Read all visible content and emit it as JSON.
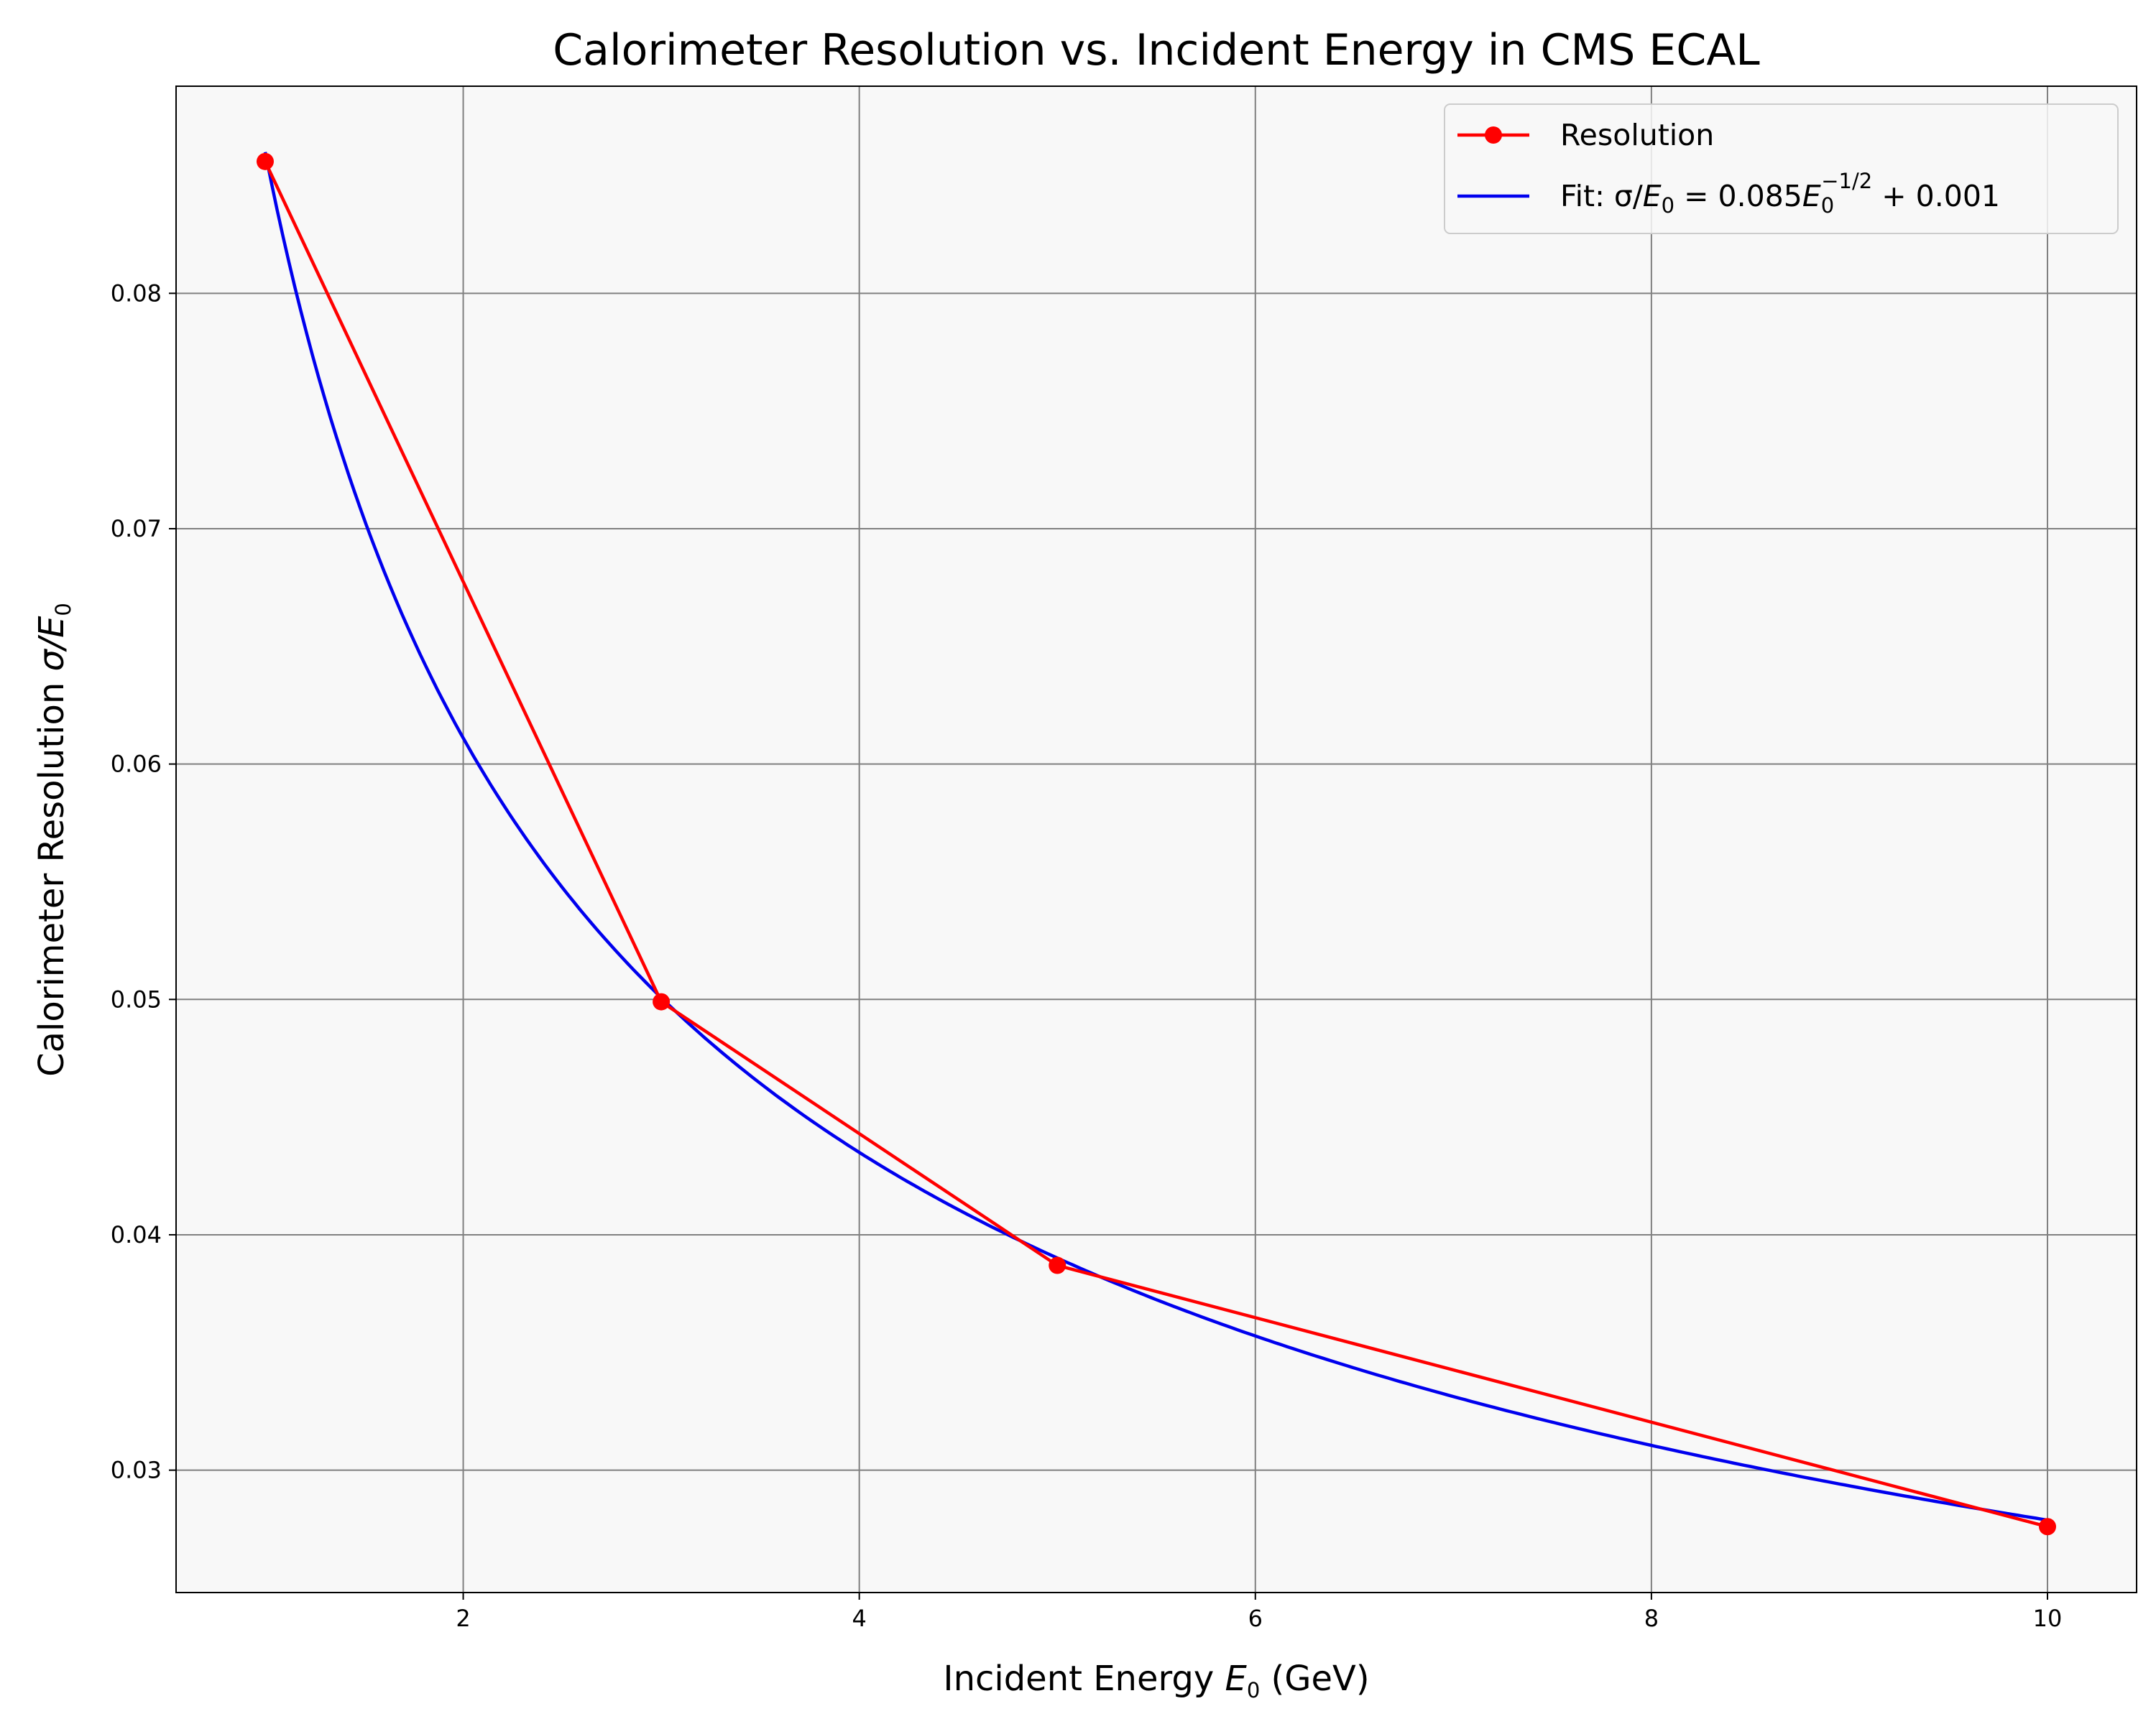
{
  "chart_data": {
    "type": "line",
    "title": "Calorimeter Resolution vs. Incident Energy in CMS ECAL",
    "xlabel": {
      "prefix": "Incident Energy ",
      "var": "E",
      "sub": "0",
      "suffix": " (GeV)"
    },
    "ylabel": {
      "prefix": "Calorimeter Resolution ",
      "var": "σ/E",
      "sub": "0"
    },
    "xlim": [
      0.55,
      10.45
    ],
    "ylim": [
      0.0248,
      0.0888
    ],
    "xticks": [
      2,
      4,
      6,
      8,
      10
    ],
    "xtick_labels": [
      "2",
      "4",
      "6",
      "8",
      "10"
    ],
    "yticks": [
      0.03,
      0.04,
      0.05,
      0.06,
      0.07,
      0.08
    ],
    "ytick_labels": [
      "0.03",
      "0.04",
      "0.05",
      "0.06",
      "0.07",
      "0.08"
    ],
    "grid": true,
    "legend_position": "top-right",
    "series": [
      {
        "name": "Resolution",
        "style": "line-with-markers",
        "color": "#ff0000",
        "x": [
          1,
          3,
          5,
          10
        ],
        "y": [
          0.0856,
          0.0499,
          0.0387,
          0.0276
        ]
      },
      {
        "name": "Fit: σ/E0 = 0.085E0^(-1/2) + 0.001",
        "style": "line",
        "color": "#0000ee",
        "fit": {
          "a": 0.085,
          "exponent": -0.5,
          "b": 0.001,
          "x_range": [
            1,
            10
          ]
        }
      }
    ],
    "legend_entries": {
      "resolution": "Resolution",
      "fit": {
        "lead": "Fit: σ/",
        "var": "E",
        "sub": "0",
        "mid": " = 0.085",
        "var2": "E",
        "sub2": "0",
        "sup2": "−1/2",
        "tail": " + 0.001"
      }
    },
    "colors": {
      "background": "#f8f8f8",
      "grid": "#808080",
      "resolution": "#ff0000",
      "fit": "#0000ee",
      "legend_border": "#cccccc"
    }
  }
}
